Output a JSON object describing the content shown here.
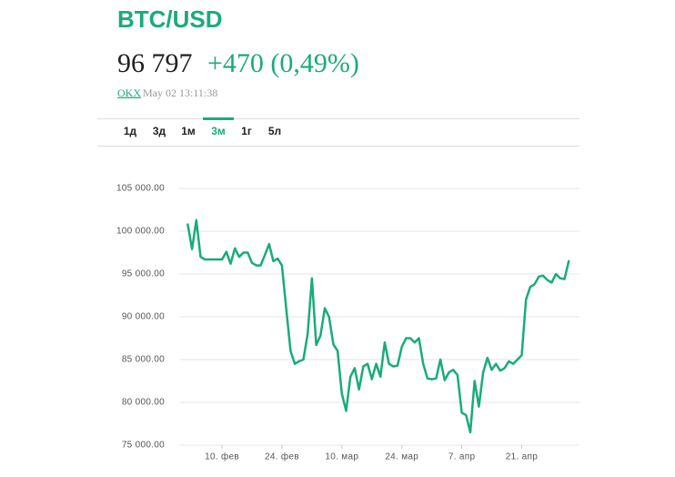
{
  "header": {
    "title": "BTC/USD",
    "price": "96 797",
    "change": "+470 (0,49%)",
    "source": "OKX",
    "timestamp": "May 02 13:11:38"
  },
  "tabs": [
    "1д",
    "3д",
    "1м",
    "3м",
    "1г",
    "5л"
  ],
  "active_tab": 3,
  "chart_data": {
    "type": "line",
    "color": "#1aab7a",
    "grid": true,
    "x": [
      2,
      3,
      4,
      5,
      6,
      7,
      8,
      9,
      10,
      11,
      12,
      13,
      14,
      15,
      16,
      17,
      18,
      19,
      20,
      21,
      22,
      23,
      24,
      25,
      26,
      27,
      28,
      29,
      30,
      31,
      32,
      33,
      34,
      35,
      36,
      37,
      38,
      39,
      40,
      41,
      42,
      43,
      44,
      45,
      46,
      47,
      48,
      49,
      50,
      51,
      52,
      53,
      54,
      55,
      56,
      57,
      58,
      59,
      60,
      61,
      62,
      63,
      64,
      65,
      66,
      67,
      68,
      69,
      70,
      71,
      72,
      73,
      74,
      75,
      76,
      77,
      78,
      79,
      80,
      81,
      82,
      83,
      84,
      85,
      86,
      87,
      88,
      89,
      90,
      91
    ],
    "values": [
      100800,
      97900,
      101300,
      97000,
      96700,
      96700,
      96700,
      96700,
      96700,
      97600,
      96200,
      98000,
      97000,
      97500,
      97500,
      96300,
      96000,
      96000,
      97200,
      98500,
      96500,
      96800,
      96000,
      91000,
      86000,
      84500,
      84800,
      85000,
      88000,
      94500,
      86700,
      87800,
      91000,
      90000,
      86800,
      86000,
      81000,
      79000,
      83000,
      84000,
      81500,
      84200,
      84500,
      82700,
      84500,
      83000,
      87000,
      84500,
      84200,
      84300,
      86500,
      87500,
      87500,
      87000,
      87500,
      84500,
      82800,
      82700,
      82800,
      85000,
      82600,
      83500,
      83800,
      83200,
      78800,
      78500,
      76500,
      82500,
      79500,
      83500,
      85200,
      83800,
      84500,
      83700,
      84000,
      84800,
      84500,
      85000,
      85500,
      92000,
      93500,
      93800,
      94700,
      94800,
      94300,
      94000,
      95000,
      94500,
      94400,
      96500
    ],
    "xlim": [
      0,
      93.5
    ],
    "xticks": [
      {
        "value": 10,
        "label": "10. фев"
      },
      {
        "value": 24,
        "label": "24. фев"
      },
      {
        "value": 38,
        "label": "10. мар"
      },
      {
        "value": 52,
        "label": "24. мар"
      },
      {
        "value": 66,
        "label": "7. апр"
      },
      {
        "value": 80,
        "label": "21. апр"
      }
    ],
    "ylim": [
      75000,
      105000
    ],
    "yticks": [
      {
        "value": 75000,
        "label": "75 000.00"
      },
      {
        "value": 80000,
        "label": "80 000.00"
      },
      {
        "value": 85000,
        "label": "85 000.00"
      },
      {
        "value": 90000,
        "label": "90 000.00"
      },
      {
        "value": 95000,
        "label": "95 000.00"
      },
      {
        "value": 100000,
        "label": "100 000.00"
      },
      {
        "value": 105000,
        "label": "105 000.00"
      }
    ]
  }
}
